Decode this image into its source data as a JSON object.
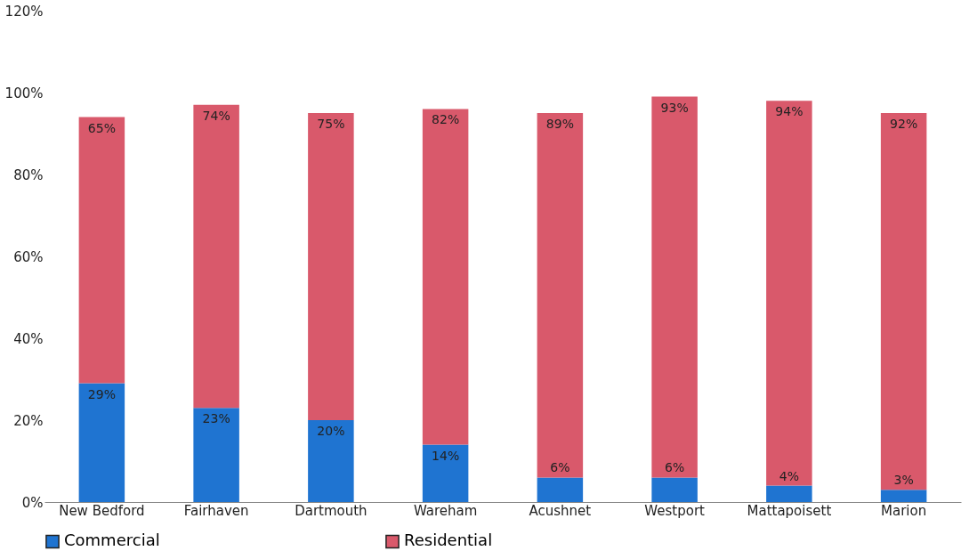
{
  "chart_data": {
    "type": "bar",
    "stacked": true,
    "categories": [
      "New Bedford",
      "Fairhaven",
      "Dartmouth",
      "Wareham",
      "Acushnet",
      "Westport",
      "Mattapoisett",
      "Marion"
    ],
    "series": [
      {
        "name": "Commercial",
        "color": "#1f74d1",
        "values": [
          29,
          23,
          20,
          14,
          6,
          6,
          4,
          3
        ],
        "value_labels": [
          "29%",
          "23%",
          "20%",
          "14%",
          "6%",
          "6%",
          "4%",
          "3%"
        ]
      },
      {
        "name": "Residential",
        "color": "#d9596b",
        "values": [
          65,
          74,
          75,
          82,
          89,
          93,
          94,
          92
        ],
        "value_labels": [
          "65%",
          "74%",
          "75%",
          "82%",
          "89%",
          "93%",
          "94%",
          "92%"
        ]
      }
    ],
    "ylim": [
      0,
      120
    ],
    "yticks": [
      {
        "value": 0,
        "label": "0%"
      },
      {
        "value": 20,
        "label": "20%"
      },
      {
        "value": 40,
        "label": "40%"
      },
      {
        "value": 60,
        "label": "60%"
      },
      {
        "value": 80,
        "label": "80%"
      },
      {
        "value": 100,
        "label": "100%"
      },
      {
        "value": 120,
        "label": "120%"
      }
    ],
    "grid": false,
    "legend": "bottom"
  }
}
